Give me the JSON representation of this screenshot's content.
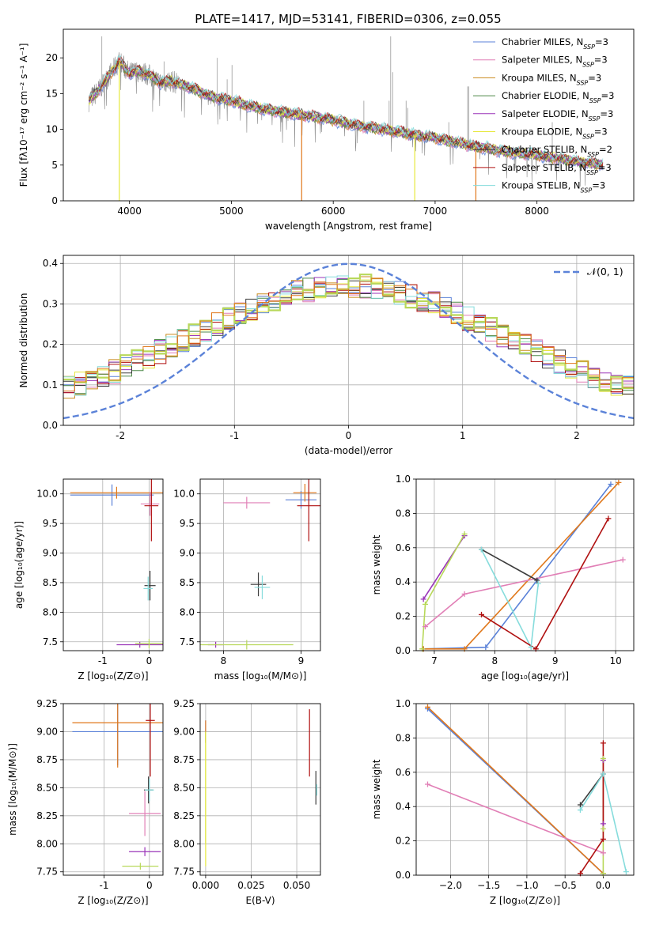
{
  "title": "PLATE=1417, MJD=53141, FIBERID=0306, z=0.055",
  "colors": {
    "chabrier_miles": "#5b82d8",
    "salpeter_miles": "#e17fb6",
    "kroupa_miles": "#c98a1c",
    "chabrier_elodie": "#4f8a4a",
    "salpeter_elodie": "#9a34b8",
    "kroupa_elodie": "#e6e83a",
    "chabrier_stelib": "#3c3c3c",
    "salpeter_stelib": "#b01010",
    "kroupa_stelib": "#86dcdc",
    "data": "#8a8a8a",
    "normal": "#5b82d8",
    "hist_green": "#b8d85a",
    "hist_orange": "#e0781c"
  },
  "legend_spectrum": [
    {
      "label": "Chabrier MILES, N",
      "sub": "SSP",
      "tail": "=3",
      "color": "#5b82d8"
    },
    {
      "label": "Salpeter MILES, N",
      "sub": "SSP",
      "tail": "=3",
      "color": "#e17fb6"
    },
    {
      "label": "Kroupa MILES, N",
      "sub": "SSP",
      "tail": "=3",
      "color": "#c98a1c"
    },
    {
      "label": "Chabrier ELODIE, N",
      "sub": "SSP",
      "tail": "=3",
      "color": "#4f8a4a"
    },
    {
      "label": "Salpeter ELODIE, N",
      "sub": "SSP",
      "tail": "=3",
      "color": "#9a34b8"
    },
    {
      "label": "Kroupa ELODIE, N",
      "sub": "SSP",
      "tail": "=3",
      "color": "#e6e83a"
    },
    {
      "label": "Chabrier STELIB, N",
      "sub": "SSP",
      "tail": "=2",
      "color": "#3c3c3c"
    },
    {
      "label": "Salpeter STELIB, N",
      "sub": "SSP",
      "tail": "=3",
      "color": "#b01010"
    },
    {
      "label": "Kroupa STELIB, N",
      "sub": "SSP",
      "tail": "=3",
      "color": "#86dcdc"
    }
  ],
  "chart_data": [
    {
      "type": "line",
      "panel": "spectrum",
      "title": "PLATE=1417, MJD=53141, FIBERID=0306, z=0.055",
      "xlabel": "wavelength [Angstrom, rest frame]",
      "ylabel": "Flux [fλ10⁻¹⁷ erg cm⁻² s⁻¹ A⁻¹]",
      "xlim": [
        3350,
        8950
      ],
      "ylim": [
        0,
        24
      ],
      "xticks": [
        4000,
        5000,
        6000,
        7000,
        8000
      ],
      "yticks": [
        0,
        5,
        10,
        15,
        20
      ],
      "continuum_x": [
        3600,
        3700,
        3800,
        3900,
        4000,
        4100,
        4200,
        4300,
        4400,
        4600,
        4800,
        5000,
        5200,
        5400,
        5600,
        5800,
        6000,
        6200,
        6400,
        6600,
        6800,
        7000,
        7200,
        7400,
        7600,
        7800,
        8000,
        8200,
        8400,
        8600
      ],
      "continuum_y": [
        14.0,
        15.5,
        17.5,
        19.5,
        17.8,
        18.2,
        17.5,
        16.5,
        16.8,
        15.8,
        14.6,
        14.0,
        13.2,
        12.6,
        12.2,
        11.8,
        11.3,
        10.6,
        10.2,
        9.7,
        9.2,
        8.8,
        8.2,
        7.6,
        7.1,
        6.7,
        6.4,
        6.0,
        5.5,
        5.1
      ],
      "emission_lines": [
        [
          3727,
          23
        ],
        [
          4102,
          19
        ],
        [
          4340,
          19.5
        ],
        [
          4861,
          20
        ],
        [
          4959,
          17
        ],
        [
          5007,
          19
        ],
        [
          6300,
          14
        ],
        [
          6548,
          14
        ],
        [
          6563,
          23
        ],
        [
          6584,
          18
        ],
        [
          6716,
          14
        ],
        [
          6731,
          13
        ],
        [
          7135,
          11
        ],
        [
          7320,
          16
        ],
        [
          7330,
          16
        ],
        [
          8150,
          11
        ]
      ],
      "model_drops": [
        [
          3900,
          "#e6e83a"
        ],
        [
          5690,
          "#e0781c"
        ],
        [
          6800,
          "#e6e83a"
        ],
        [
          7400,
          "#e0781c"
        ]
      ]
    },
    {
      "type": "line",
      "panel": "residual_histogram",
      "xlabel": "(data-model)/error",
      "ylabel": "Normed distribution",
      "xlim": [
        -2.5,
        2.5
      ],
      "ylim": [
        0,
        0.42
      ],
      "xticks": [
        -2,
        -1,
        0,
        1,
        2
      ],
      "yticks": [
        0.0,
        0.1,
        0.2,
        0.3,
        0.4
      ],
      "legend": "𝒩(0, 1)",
      "normal_curve": {
        "mean": 0,
        "sigma": 1
      },
      "bin_edges_from": -2.5,
      "bin_width": 0.1,
      "histogram_center": 0.0,
      "histogram_peak": 0.31,
      "histogram_sigma": 1.35
    },
    {
      "type": "scatter",
      "panel": "age_vs_Z",
      "xlabel": "Z [log₁₀(Z/Z⊙)]",
      "ylabel": "age  [log₁₀(age/yr)]",
      "xlim": [
        -1.85,
        0.3
      ],
      "ylim": [
        7.35,
        10.25
      ],
      "xticks": [
        -1,
        0
      ],
      "yticks": [
        7.5,
        8.0,
        8.5,
        9.0,
        9.5,
        10.0
      ],
      "points": [
        {
          "x": -0.8,
          "y": 9.98,
          "xerr": 0.9,
          "yerr": 0.18,
          "color": "#5b82d8"
        },
        {
          "x": -0.7,
          "y": 10.02,
          "xerr": 1.0,
          "yerr": 0.1,
          "color": "#e0781c"
        },
        {
          "x": 0.02,
          "y": 9.83,
          "xerr": 0.2,
          "yerr": 0.2,
          "color": "#e17fb6"
        },
        {
          "x": -0.2,
          "y": 7.45,
          "xerr": 0.5,
          "yerr": 0.05,
          "color": "#9a34b8"
        },
        {
          "x": 0.02,
          "y": 8.45,
          "xerr": 0.12,
          "yerr": 0.25,
          "color": "#3c3c3c"
        },
        {
          "x": -0.02,
          "y": 8.4,
          "xerr": 0.1,
          "yerr": 0.2,
          "color": "#86dcdc"
        },
        {
          "x": 0.05,
          "y": 9.8,
          "xerr": 0.15,
          "yerr": 0.6,
          "color": "#b01010"
        },
        {
          "x": 0.0,
          "y": 7.47,
          "xerr": 0.3,
          "yerr": 0.08,
          "color": "#b8d85a"
        }
      ]
    },
    {
      "type": "scatter",
      "panel": "age_vs_mass",
      "xlabel": "mass [log₁₀(M/M⊙)]",
      "ylabel": "",
      "xlim": [
        7.7,
        9.25
      ],
      "ylim": [
        7.35,
        10.25
      ],
      "xticks": [
        8,
        9
      ],
      "yticks": [
        7.5,
        8.0,
        8.5,
        9.0,
        9.5,
        10.0
      ],
      "points": [
        {
          "x": 9.0,
          "y": 9.9,
          "xerr": 0.2,
          "yerr": 0.15,
          "color": "#5b82d8"
        },
        {
          "x": 9.05,
          "y": 10.02,
          "xerr": 0.15,
          "yerr": 0.15,
          "color": "#e0781c"
        },
        {
          "x": 8.3,
          "y": 9.85,
          "xerr": 0.3,
          "yerr": 0.1,
          "color": "#e17fb6"
        },
        {
          "x": 7.9,
          "y": 7.45,
          "xerr": 0.1,
          "yerr": 0.05,
          "color": "#9a34b8"
        },
        {
          "x": 8.45,
          "y": 8.47,
          "xerr": 0.1,
          "yerr": 0.2,
          "color": "#3c3c3c"
        },
        {
          "x": 8.5,
          "y": 8.42,
          "xerr": 0.1,
          "yerr": 0.2,
          "color": "#86dcdc"
        },
        {
          "x": 9.1,
          "y": 9.8,
          "xerr": 0.15,
          "yerr": 0.6,
          "color": "#b01010"
        },
        {
          "x": 8.3,
          "y": 7.45,
          "xerr": 0.6,
          "yerr": 0.08,
          "color": "#b8d85a"
        }
      ]
    },
    {
      "type": "line",
      "panel": "mass_weight_vs_age",
      "xlabel": "age  [log₁₀(age/yr)]",
      "ylabel": "mass weight",
      "xlim": [
        6.7,
        10.3
      ],
      "ylim": [
        0,
        1.0
      ],
      "xticks": [
        7,
        8,
        9,
        10
      ],
      "yticks": [
        0.0,
        0.2,
        0.4,
        0.6,
        0.8,
        1.0
      ],
      "series": [
        {
          "color": "#5b82d8",
          "x": [
            6.82,
            7.85,
            9.92
          ],
          "y": [
            0.01,
            0.02,
            0.97
          ]
        },
        {
          "color": "#e0781c",
          "x": [
            6.82,
            7.5,
            10.05
          ],
          "y": [
            0.01,
            0.01,
            0.98
          ]
        },
        {
          "color": "#e17fb6",
          "x": [
            6.85,
            7.5,
            10.12
          ],
          "y": [
            0.14,
            0.33,
            0.53
          ]
        },
        {
          "color": "#9a34b8",
          "x": [
            6.82,
            7.5
          ],
          "y": [
            0.3,
            0.67
          ]
        },
        {
          "color": "#b8d85a",
          "x": [
            6.8,
            6.85,
            7.5
          ],
          "y": [
            0.01,
            0.27,
            0.68
          ]
        },
        {
          "color": "#3c3c3c",
          "x": [
            7.78,
            8.7
          ],
          "y": [
            0.59,
            0.41
          ]
        },
        {
          "color": "#86dcdc",
          "x": [
            7.78,
            8.6,
            8.72
          ],
          "y": [
            0.59,
            0.02,
            0.39
          ]
        },
        {
          "color": "#b01010",
          "x": [
            7.78,
            8.68,
            9.88
          ],
          "y": [
            0.21,
            0.01,
            0.77
          ]
        }
      ]
    },
    {
      "type": "scatter",
      "panel": "mass_vs_Z",
      "xlabel": "Z [log₁₀(Z/Z⊙)]",
      "ylabel": "mass [log₁₀(M/M⊙)]",
      "xlim": [
        -1.9,
        0.3
      ],
      "ylim": [
        7.72,
        9.25
      ],
      "xticks": [
        -1,
        0
      ],
      "yticks": [
        7.75,
        8.0,
        8.25,
        8.5,
        8.75,
        9.0,
        9.25
      ],
      "points": [
        {
          "x": -0.7,
          "y": 9.0,
          "xerr": 1.0,
          "yerr": 0.3,
          "color": "#5b82d8"
        },
        {
          "x": -0.7,
          "y": 9.08,
          "xerr": 1.0,
          "yerr": 0.4,
          "color": "#e0781c"
        },
        {
          "x": -0.1,
          "y": 8.27,
          "xerr": 0.35,
          "yerr": 0.2,
          "color": "#e17fb6"
        },
        {
          "x": -0.1,
          "y": 7.93,
          "xerr": 0.35,
          "yerr": 0.04,
          "color": "#9a34b8"
        },
        {
          "x": -0.02,
          "y": 8.48,
          "xerr": 0.1,
          "yerr": 0.12,
          "color": "#3c3c3c"
        },
        {
          "x": 0.0,
          "y": 8.48,
          "xerr": 0.1,
          "yerr": 0.1,
          "color": "#86dcdc"
        },
        {
          "x": 0.02,
          "y": 9.1,
          "xerr": 0.1,
          "yerr": 0.5,
          "color": "#b01010"
        },
        {
          "x": -0.2,
          "y": 7.8,
          "xerr": 0.4,
          "yerr": 0.03,
          "color": "#b8d85a"
        }
      ]
    },
    {
      "type": "scatter",
      "panel": "mass_vs_ebv",
      "xlabel": "E(B-V)",
      "ylabel": "",
      "xlim": [
        -0.003,
        0.063
      ],
      "ylim": [
        7.72,
        9.25
      ],
      "xticks": [
        0.0,
        0.025,
        0.05
      ],
      "yticks": [
        7.75,
        8.0,
        8.25,
        8.5,
        8.75,
        9.0,
        9.25
      ],
      "points": [
        {
          "x": 0.0,
          "y": 9.0,
          "xerr": 0.0,
          "yerr": 0.1,
          "color": "#5b82d8"
        },
        {
          "x": 0.0,
          "y": 9.0,
          "xerr": 0.0,
          "yerr": 0.1,
          "color": "#e0781c"
        },
        {
          "x": 0.0,
          "y": 8.5,
          "xerr": 0.0,
          "yerr": 0.5,
          "color": "#b8d85a"
        },
        {
          "x": 0.0,
          "y": 8.4,
          "xerr": 0.0,
          "yerr": 0.6,
          "color": "#e6e83a"
        },
        {
          "x": 0.057,
          "y": 8.9,
          "xerr": 0.0,
          "yerr": 0.3,
          "color": "#b01010"
        },
        {
          "x": 0.0605,
          "y": 8.5,
          "xerr": 0.0,
          "yerr": 0.15,
          "color": "#3c3c3c"
        },
        {
          "x": 0.061,
          "y": 8.48,
          "xerr": 0.0,
          "yerr": 0.05,
          "color": "#86dcdc"
        }
      ]
    },
    {
      "type": "line",
      "panel": "mass_weight_vs_Z",
      "xlabel": "Z [log₁₀(Z/Z⊙)]",
      "ylabel": "mass weight",
      "xlim": [
        -2.45,
        0.4
      ],
      "ylim": [
        0,
        1.0
      ],
      "xticks": [
        -2.0,
        -1.5,
        -1.0,
        -0.5,
        0.0
      ],
      "yticks": [
        0.0,
        0.2,
        0.4,
        0.6,
        0.8,
        1.0
      ],
      "series": [
        {
          "color": "#5b82d8",
          "x": [
            -2.3,
            0.0
          ],
          "y": [
            0.97,
            0.01
          ]
        },
        {
          "color": "#e0781c",
          "x": [
            -2.3,
            0.0
          ],
          "y": [
            0.98,
            0.01
          ]
        },
        {
          "color": "#e17fb6",
          "x": [
            -2.3,
            0.0
          ],
          "y": [
            0.53,
            0.13
          ]
        },
        {
          "color": "#9a34b8",
          "x": [
            0.0,
            0.0
          ],
          "y": [
            0.3,
            0.67
          ]
        },
        {
          "color": "#b8d85a",
          "x": [
            0.0,
            0.0,
            0.0
          ],
          "y": [
            0.01,
            0.27,
            0.68
          ]
        },
        {
          "color": "#3c3c3c",
          "x": [
            -0.3,
            0.0
          ],
          "y": [
            0.41,
            0.59
          ]
        },
        {
          "color": "#86dcdc",
          "x": [
            -0.3,
            0.0,
            0.3
          ],
          "y": [
            0.38,
            0.59,
            0.02
          ]
        },
        {
          "color": "#b01010",
          "x": [
            -0.3,
            0.0,
            0.0
          ],
          "y": [
            0.01,
            0.21,
            0.77
          ]
        }
      ]
    }
  ]
}
